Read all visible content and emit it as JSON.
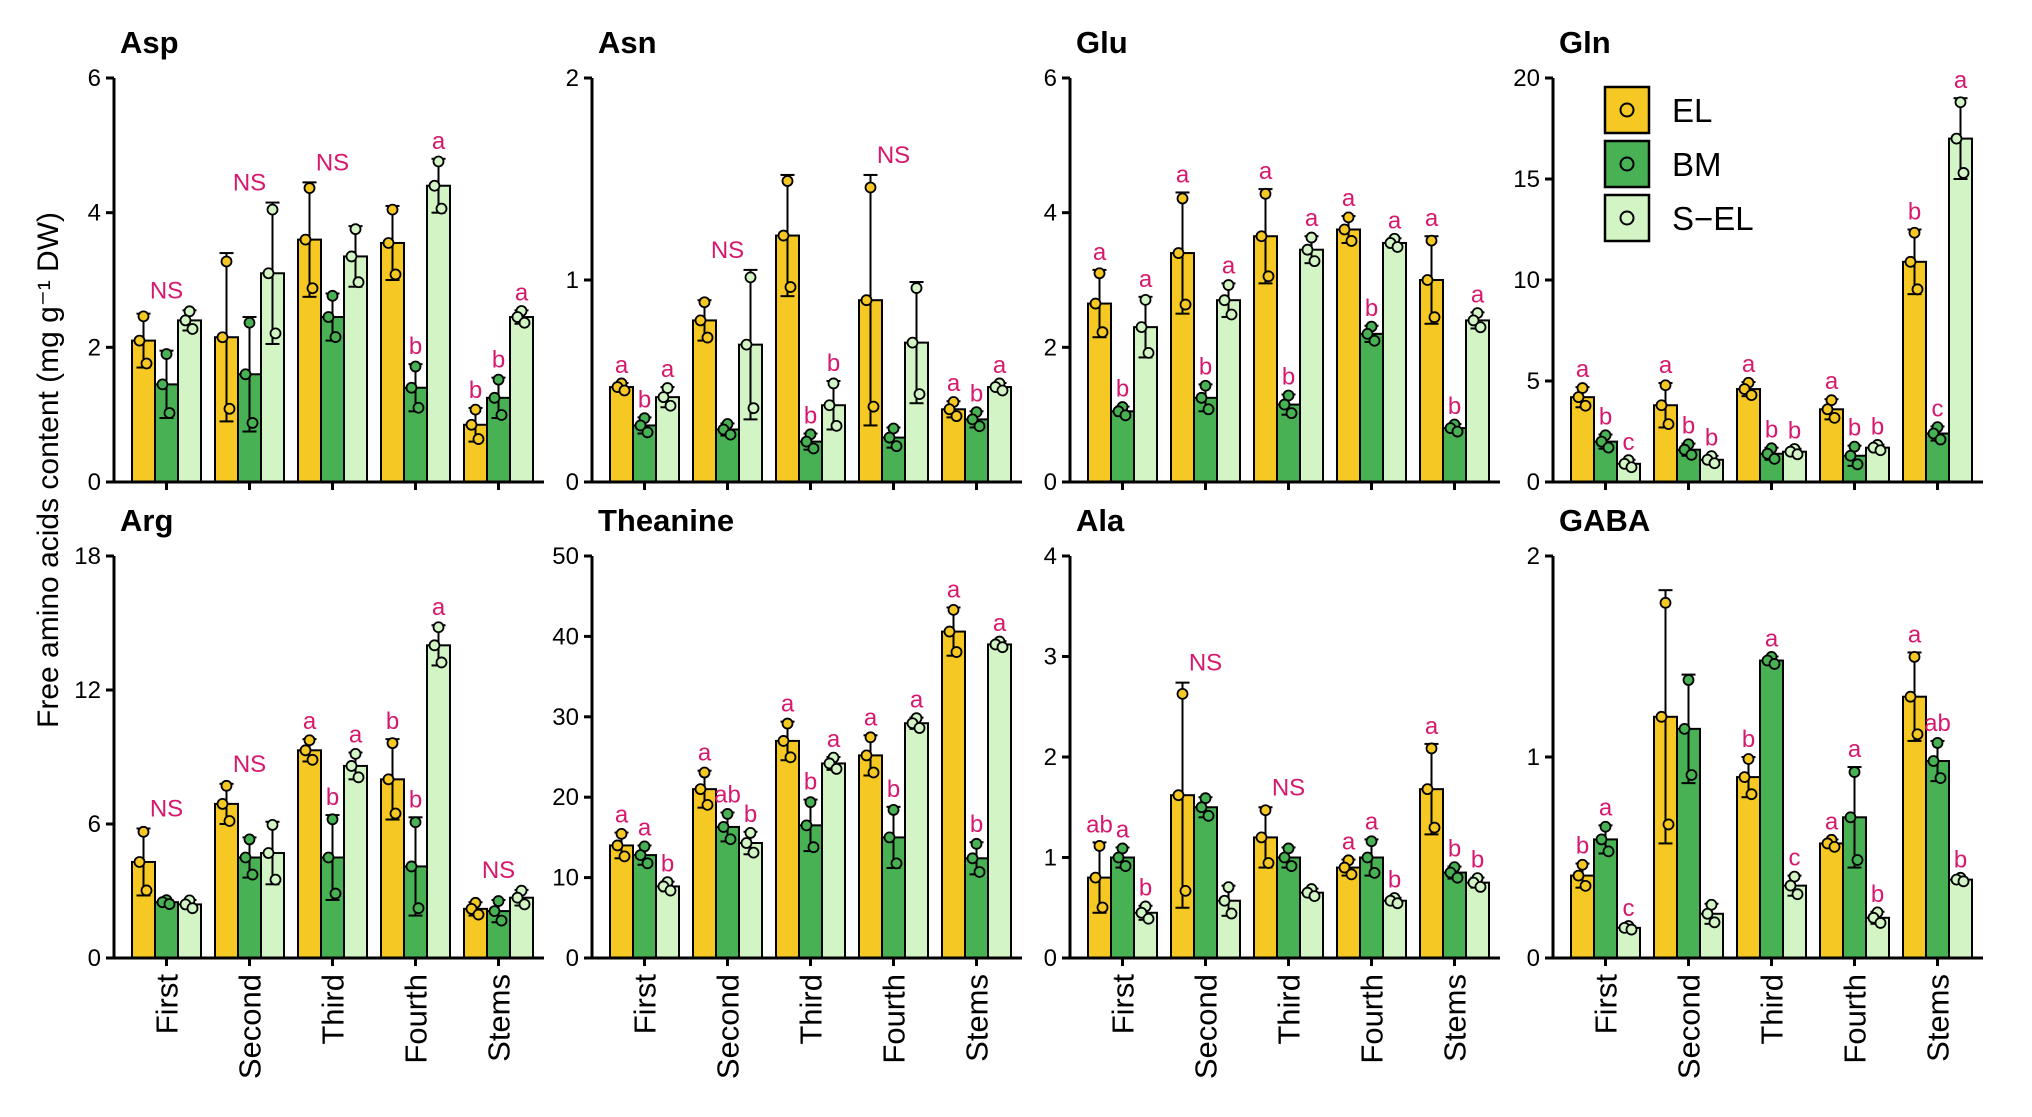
{
  "figure": {
    "ylabel": "Free amino acids content (mg g⁻¹ DW)",
    "categories": [
      "First",
      "Second",
      "Third",
      "Fourth",
      "Stems"
    ],
    "colors": {
      "EL": "#f5c823",
      "BM": "#47b153",
      "S-EL": "#d3f5c6",
      "sig": "#d6196e"
    }
  },
  "legend": {
    "labels": [
      "EL",
      "BM",
      "S−EL"
    ]
  },
  "chart_data": [
    {
      "type": "bar",
      "title": "Asp",
      "ylim": [
        0,
        6
      ],
      "yticks": [
        "0",
        "2",
        "4",
        "6"
      ],
      "categories": [
        "First",
        "Second",
        "Third",
        "Fourth",
        "Stems"
      ],
      "series": [
        {
          "name": "EL",
          "values": [
            2.1,
            2.15,
            3.6,
            3.55,
            0.85
          ],
          "errors": [
            0.4,
            1.25,
            0.85,
            0.55,
            0.25
          ]
        },
        {
          "name": "BM",
          "values": [
            1.45,
            1.6,
            2.45,
            1.4,
            1.25
          ],
          "errors": [
            0.5,
            0.85,
            0.35,
            0.35,
            0.3
          ]
        },
        {
          "name": "S-EL",
          "values": [
            2.4,
            3.1,
            3.35,
            4.4,
            2.45
          ],
          "errors": [
            0.15,
            1.05,
            0.45,
            0.4,
            0.1
          ]
        }
      ],
      "labels": [
        [
          "NS",
          null,
          null,
          null
        ],
        [
          "NS",
          null,
          null,
          null
        ],
        [
          "NS",
          null,
          null,
          null
        ],
        [
          "",
          "b",
          "a",
          null
        ],
        [
          "b",
          "b",
          "a",
          null
        ]
      ]
    },
    {
      "type": "bar",
      "title": "Asn",
      "ylim": [
        0,
        2
      ],
      "yticks": [
        "0",
        "1",
        "2"
      ],
      "categories": [
        "First",
        "Second",
        "Third",
        "Fourth",
        "Stems"
      ],
      "series": [
        {
          "name": "EL",
          "values": [
            0.47,
            0.8,
            1.22,
            0.9,
            0.36
          ],
          "errors": [
            0.02,
            0.1,
            0.3,
            0.62,
            0.04
          ]
        },
        {
          "name": "BM",
          "values": [
            0.28,
            0.26,
            0.2,
            0.22,
            0.31
          ],
          "errors": [
            0.04,
            0.03,
            0.04,
            0.05,
            0.04
          ]
        },
        {
          "name": "S-EL",
          "values": [
            0.42,
            0.68,
            0.38,
            0.69,
            0.47
          ],
          "errors": [
            0.05,
            0.37,
            0.12,
            0.3,
            0.02
          ]
        }
      ],
      "labels": [
        [
          "a",
          "b",
          "a",
          null
        ],
        [
          "NS",
          null,
          null,
          null
        ],
        [
          "",
          "b",
          "b",
          null
        ],
        [
          "NS",
          null,
          null,
          null
        ],
        [
          "a",
          "b",
          "a",
          null
        ]
      ]
    },
    {
      "type": "bar",
      "title": "Glu",
      "ylim": [
        0,
        6
      ],
      "yticks": [
        "0",
        "2",
        "4",
        "6"
      ],
      "categories": [
        "First",
        "Second",
        "Third",
        "Fourth",
        "Stems"
      ],
      "series": [
        {
          "name": "EL",
          "values": [
            2.65,
            3.4,
            3.65,
            3.75,
            3.0
          ],
          "errors": [
            0.5,
            0.9,
            0.7,
            0.2,
            0.65
          ]
        },
        {
          "name": "BM",
          "values": [
            1.05,
            1.25,
            1.15,
            2.2,
            0.8
          ],
          "errors": [
            0.07,
            0.2,
            0.15,
            0.12,
            0.06
          ]
        },
        {
          "name": "S-EL",
          "values": [
            2.3,
            2.7,
            3.45,
            3.55,
            2.4
          ],
          "errors": [
            0.45,
            0.25,
            0.2,
            0.07,
            0.12
          ]
        }
      ],
      "labels": [
        [
          "a",
          "b",
          "a",
          null
        ],
        [
          "a",
          "b",
          "a",
          null
        ],
        [
          "a",
          "b",
          "a",
          null
        ],
        [
          "a",
          "b",
          "a",
          null
        ],
        [
          "a",
          "b",
          "a",
          null
        ]
      ]
    },
    {
      "type": "bar",
      "title": "Gln",
      "ylim": [
        0,
        20
      ],
      "yticks": [
        "0",
        "5",
        "10",
        "15",
        "20"
      ],
      "categories": [
        "First",
        "Second",
        "Third",
        "Fourth",
        "Stems"
      ],
      "series": [
        {
          "name": "EL",
          "values": [
            4.2,
            3.8,
            4.6,
            3.6,
            10.9
          ],
          "errors": [
            0.5,
            1.1,
            0.35,
            0.5,
            1.6
          ]
        },
        {
          "name": "BM",
          "values": [
            2.0,
            1.6,
            1.4,
            1.3,
            2.4
          ],
          "errors": [
            0.35,
            0.3,
            0.3,
            0.5,
            0.35
          ]
        },
        {
          "name": "S-EL",
          "values": [
            0.9,
            1.1,
            1.5,
            1.7,
            17.0
          ],
          "errors": [
            0.2,
            0.2,
            0.15,
            0.15,
            2.0
          ]
        }
      ],
      "labels": [
        [
          "a",
          "b",
          "c",
          null
        ],
        [
          "a",
          "b",
          "b",
          null
        ],
        [
          "a",
          "b",
          "b",
          null
        ],
        [
          "a",
          "b",
          "b",
          null
        ],
        [
          "b",
          "c",
          "a",
          null
        ]
      ]
    },
    {
      "type": "bar",
      "title": "Arg",
      "ylim": [
        0,
        18
      ],
      "yticks": [
        "0",
        "6",
        "12",
        "18"
      ],
      "categories": [
        "First",
        "Second",
        "Third",
        "Fourth",
        "Stems"
      ],
      "series": [
        {
          "name": "EL",
          "values": [
            4.3,
            6.9,
            9.3,
            8.0,
            2.2
          ],
          "errors": [
            1.5,
            0.9,
            0.5,
            1.8,
            0.3
          ]
        },
        {
          "name": "BM",
          "values": [
            2.5,
            4.5,
            4.5,
            4.1,
            2.1
          ],
          "errors": [
            0.1,
            0.9,
            1.9,
            2.2,
            0.5
          ]
        },
        {
          "name": "S-EL",
          "values": [
            2.4,
            4.7,
            8.6,
            14.0,
            2.7
          ],
          "errors": [
            0.2,
            1.4,
            0.6,
            0.9,
            0.35
          ]
        }
      ],
      "labels": [
        [
          "NS",
          null,
          null,
          null
        ],
        [
          "NS",
          null,
          null,
          null
        ],
        [
          "a",
          "b",
          "a",
          null
        ],
        [
          "b",
          "b",
          "a",
          null
        ],
        [
          "NS",
          null,
          null,
          null
        ]
      ]
    },
    {
      "type": "bar",
      "title": "Theanine",
      "ylim": [
        0,
        50
      ],
      "yticks": [
        "0",
        "10",
        "20",
        "30",
        "40",
        "50"
      ],
      "categories": [
        "First",
        "Second",
        "Third",
        "Fourth",
        "Stems"
      ],
      "series": [
        {
          "name": "EL",
          "values": [
            14.0,
            21.0,
            27.0,
            25.2,
            40.6
          ],
          "errors": [
            1.6,
            2.3,
            2.4,
            2.5,
            3.0
          ]
        },
        {
          "name": "BM",
          "values": [
            12.8,
            16.3,
            16.5,
            15.0,
            12.4
          ],
          "errors": [
            1.2,
            1.8,
            3.2,
            3.8,
            2.0
          ]
        },
        {
          "name": "S-EL",
          "values": [
            8.9,
            14.3,
            24.2,
            29.2,
            39.0
          ],
          "errors": [
            0.6,
            1.4,
            0.8,
            0.7,
            0.4
          ]
        }
      ],
      "labels": [
        [
          "a",
          "a",
          "b",
          null
        ],
        [
          "a",
          "ab",
          "b",
          null
        ],
        [
          "a",
          "b",
          "a",
          null
        ],
        [
          "a",
          "b",
          "a",
          null
        ],
        [
          "a",
          "b",
          "a",
          null
        ]
      ]
    },
    {
      "type": "bar",
      "title": "Ala",
      "ylim": [
        0,
        4
      ],
      "yticks": [
        "0",
        "1",
        "2",
        "3",
        "4"
      ],
      "categories": [
        "First",
        "Second",
        "Third",
        "Fourth",
        "Stems"
      ],
      "series": [
        {
          "name": "EL",
          "values": [
            0.8,
            1.62,
            1.2,
            0.9,
            1.68
          ],
          "errors": [
            0.35,
            1.12,
            0.3,
            0.08,
            0.45
          ]
        },
        {
          "name": "BM",
          "values": [
            1.0,
            1.5,
            1.0,
            1.0,
            0.85
          ],
          "errors": [
            0.1,
            0.1,
            0.1,
            0.18,
            0.06
          ]
        },
        {
          "name": "S-EL",
          "values": [
            0.45,
            0.57,
            0.65,
            0.57,
            0.75
          ],
          "errors": [
            0.07,
            0.15,
            0.04,
            0.03,
            0.05
          ]
        }
      ],
      "labels": [
        [
          "ab",
          "a",
          "b",
          null
        ],
        [
          "NS",
          null,
          null,
          null
        ],
        [
          "NS",
          null,
          null,
          null
        ],
        [
          "a",
          "a",
          "b",
          null
        ],
        [
          "a",
          "b",
          "b",
          null
        ]
      ]
    },
    {
      "type": "bar",
      "title": "GABA",
      "ylim": [
        0,
        2
      ],
      "yticks": [
        "0",
        "1",
        "2"
      ],
      "categories": [
        "First",
        "Second",
        "Third",
        "Fourth",
        "Stems"
      ],
      "series": [
        {
          "name": "EL",
          "values": [
            0.41,
            1.2,
            0.9,
            0.57,
            1.3
          ],
          "errors": [
            0.06,
            0.63,
            0.1,
            0.02,
            0.22
          ]
        },
        {
          "name": "BM",
          "values": [
            0.59,
            1.14,
            1.48,
            0.7,
            0.98
          ],
          "errors": [
            0.07,
            0.27,
            0.02,
            0.25,
            0.1
          ]
        },
        {
          "name": "S-EL",
          "values": [
            0.15,
            0.22,
            0.36,
            0.2,
            0.39
          ],
          "errors": [
            0.01,
            0.05,
            0.05,
            0.03,
            0.01
          ]
        }
      ],
      "labels": [
        [
          "b",
          "a",
          "c",
          null
        ],
        [
          "",
          "",
          "",
          null
        ],
        [
          "b",
          "a",
          "c",
          null
        ],
        [
          "a",
          "a",
          "b",
          null
        ],
        [
          "a",
          "ab",
          "b",
          null
        ]
      ]
    }
  ]
}
